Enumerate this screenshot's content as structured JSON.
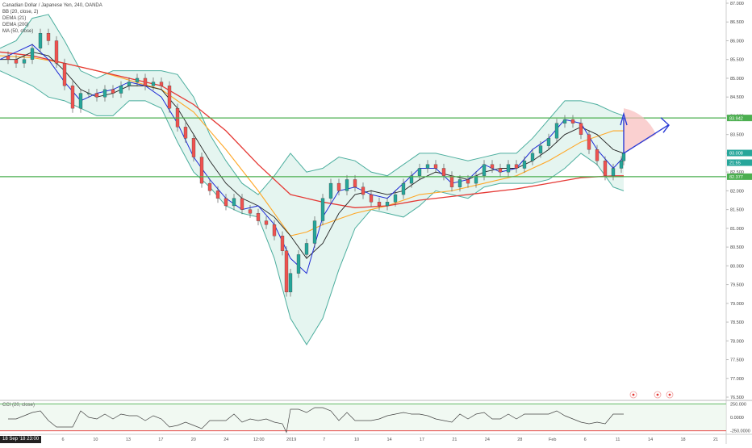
{
  "legend": {
    "symbol": "Canadian Dollar / Japanese Yen, 240, OANDA",
    "bb": "BB (20, close, 2)",
    "dema21": "DEMA (21)",
    "dema200": "DEMA (200)",
    "ma50": "MA (50, close)"
  },
  "oscillator_label": "CCI (20, close)",
  "start_date": "18 Sep '18  23:00",
  "colors": {
    "up": "#26a69a",
    "down": "#ef5350",
    "bb": "#4cae9e",
    "bb_fill": "#dff2ec",
    "dema21": "#1f2bd6",
    "dema200": "#e53935",
    "ma50": "#ffa726",
    "basis": "#222222",
    "hline": "#4caf50",
    "arrow": "#2a3bd6",
    "projection": "#f8bcbc"
  },
  "chart_data": {
    "type": "line",
    "title": "Canadian Dollar / Japanese Yen, 240, OANDA",
    "y_range": [
      76.5,
      87.0
    ],
    "price_ticks": [
      "87.000",
      "86.500",
      "86.000",
      "85.500",
      "85.000",
      "84.500",
      "84.000",
      "83.500",
      "83.000",
      "82.500",
      "82.000",
      "81.500",
      "81.000",
      "80.500",
      "80.000",
      "79.500",
      "79.000",
      "78.500",
      "78.000",
      "77.500",
      "77.000",
      "76.500"
    ],
    "x_ticks": [
      "6",
      "10",
      "13",
      "17",
      "20",
      "24",
      "12:00",
      "2019",
      "7",
      "10",
      "14",
      "17",
      "21",
      "24",
      "28",
      "Feb",
      "6",
      "11",
      "14",
      "18",
      "21"
    ],
    "horizontal_levels": [
      {
        "label": "83.942",
        "value": 83.942
      },
      {
        "label": "82.377",
        "value": 82.377
      }
    ],
    "price_tags": [
      {
        "label": "83.008",
        "value": 83.008
      },
      {
        "label": "21:55",
        "value": 82.75
      }
    ],
    "series": [
      {
        "name": "MA (50, close)",
        "x": [
          0,
          40,
          80,
          120,
          160,
          200,
          240,
          280,
          320,
          360,
          380,
          400,
          440,
          480,
          520,
          560,
          600,
          640,
          680,
          720,
          760,
          773
        ],
        "values": [
          85.6,
          85.55,
          85.4,
          85.2,
          84.95,
          84.7,
          84.1,
          83.1,
          82.0,
          80.8,
          80.9,
          81.1,
          81.4,
          81.6,
          81.9,
          82.0,
          82.2,
          82.4,
          82.8,
          83.3,
          83.6,
          83.6
        ]
      },
      {
        "name": "DEMA (200)",
        "x": [
          0,
          40,
          80,
          120,
          160,
          200,
          240,
          280,
          320,
          360,
          400,
          440,
          480,
          520,
          560,
          600,
          640,
          680,
          720,
          760,
          773
        ],
        "values": [
          85.7,
          85.6,
          85.4,
          85.2,
          85.0,
          84.8,
          84.3,
          83.6,
          82.7,
          81.9,
          81.7,
          81.55,
          81.6,
          81.75,
          81.85,
          81.95,
          82.05,
          82.2,
          82.35,
          82.4,
          82.4
        ]
      },
      {
        "name": "DEMA (21)",
        "x": [
          0,
          20,
          40,
          60,
          80,
          100,
          120,
          140,
          160,
          180,
          200,
          220,
          240,
          260,
          280,
          300,
          320,
          340,
          360,
          380,
          400,
          420,
          440,
          460,
          480,
          500,
          520,
          540,
          560,
          580,
          600,
          620,
          640,
          660,
          680,
          700,
          720,
          740,
          760,
          773
        ],
        "values": [
          85.5,
          85.7,
          85.9,
          85.5,
          84.9,
          84.4,
          84.6,
          84.7,
          84.9,
          84.8,
          84.5,
          83.8,
          82.9,
          82.3,
          81.8,
          81.5,
          81.6,
          81.1,
          80.2,
          79.8,
          81.3,
          82.0,
          82.1,
          81.9,
          81.8,
          82.2,
          82.6,
          82.6,
          82.2,
          82.3,
          82.7,
          82.5,
          82.6,
          83.1,
          83.4,
          83.9,
          83.8,
          83.1,
          82.6,
          82.9
        ]
      },
      {
        "name": "BB basis",
        "x": [
          0,
          20,
          40,
          60,
          80,
          100,
          120,
          140,
          160,
          180,
          200,
          220,
          240,
          260,
          280,
          300,
          320,
          340,
          360,
          380,
          400,
          420,
          440,
          460,
          480,
          500,
          520,
          540,
          560,
          580,
          600,
          620,
          640,
          660,
          680,
          700,
          720,
          740,
          760,
          773
        ],
        "values": [
          85.5,
          85.5,
          85.7,
          85.6,
          85.2,
          84.7,
          84.5,
          84.6,
          84.8,
          84.8,
          84.7,
          84.2,
          83.5,
          82.8,
          82.2,
          81.8,
          81.6,
          81.3,
          80.8,
          80.2,
          80.6,
          81.4,
          81.9,
          82.0,
          81.9,
          82.0,
          82.3,
          82.5,
          82.4,
          82.3,
          82.5,
          82.6,
          82.6,
          82.8,
          83.1,
          83.5,
          83.7,
          83.5,
          83.1,
          83.0
        ]
      },
      {
        "name": "BB upper",
        "x": [
          0,
          20,
          40,
          60,
          80,
          100,
          120,
          140,
          160,
          180,
          200,
          220,
          240,
          260,
          280,
          300,
          320,
          340,
          360,
          380,
          400,
          420,
          440,
          460,
          480,
          500,
          520,
          540,
          560,
          580,
          600,
          620,
          640,
          660,
          680,
          700,
          720,
          740,
          760,
          773
        ],
        "values": [
          85.8,
          86.0,
          86.6,
          86.7,
          86.0,
          85.2,
          85.0,
          85.2,
          85.2,
          85.2,
          85.2,
          85.1,
          84.5,
          83.5,
          82.8,
          82.2,
          81.9,
          82.4,
          83.0,
          82.5,
          82.6,
          82.9,
          82.8,
          82.5,
          82.4,
          82.7,
          83.0,
          83.0,
          82.9,
          82.8,
          82.9,
          83.0,
          83.0,
          83.4,
          83.9,
          84.4,
          84.4,
          84.3,
          84.1,
          84.0
        ]
      },
      {
        "name": "BB lower",
        "x": [
          0,
          20,
          40,
          60,
          80,
          100,
          120,
          140,
          160,
          180,
          200,
          220,
          240,
          260,
          280,
          300,
          320,
          340,
          360,
          380,
          400,
          420,
          440,
          460,
          480,
          500,
          520,
          540,
          560,
          580,
          600,
          620,
          640,
          660,
          680,
          700,
          720,
          740,
          760,
          773
        ],
        "values": [
          85.2,
          85.0,
          84.8,
          84.5,
          84.4,
          84.2,
          84.0,
          84.0,
          84.4,
          84.4,
          84.2,
          83.3,
          82.5,
          82.1,
          81.6,
          81.4,
          81.3,
          80.2,
          78.6,
          77.9,
          78.6,
          79.9,
          81.0,
          81.5,
          81.4,
          81.3,
          81.6,
          82.0,
          81.9,
          81.8,
          82.1,
          82.2,
          82.2,
          82.2,
          82.3,
          82.6,
          83.0,
          82.7,
          82.1,
          82.0
        ]
      },
      {
        "name": "Price",
        "x": [
          0,
          10,
          20,
          30,
          40,
          50,
          60,
          70,
          80,
          90,
          100,
          110,
          120,
          130,
          140,
          150,
          160,
          170,
          180,
          190,
          200,
          210,
          220,
          230,
          240,
          250,
          260,
          270,
          280,
          290,
          300,
          310,
          320,
          330,
          340,
          350,
          355,
          360,
          370,
          380,
          390,
          400,
          410,
          420,
          430,
          440,
          450,
          460,
          470,
          480,
          490,
          500,
          510,
          520,
          530,
          540,
          550,
          560,
          570,
          580,
          590,
          600,
          610,
          620,
          630,
          640,
          650,
          660,
          670,
          680,
          690,
          700,
          710,
          720,
          730,
          740,
          750,
          760,
          770,
          773
        ],
        "values": [
          85.6,
          85.5,
          85.4,
          85.5,
          85.8,
          86.2,
          86.0,
          85.4,
          84.8,
          84.2,
          84.6,
          84.6,
          84.5,
          84.7,
          84.6,
          84.8,
          84.9,
          85.0,
          84.8,
          84.9,
          84.8,
          84.2,
          83.7,
          83.4,
          82.9,
          82.2,
          82.0,
          81.8,
          81.6,
          81.8,
          81.5,
          81.4,
          81.2,
          81.1,
          80.8,
          80.4,
          79.3,
          79.8,
          80.3,
          80.6,
          81.2,
          81.8,
          82.2,
          82.0,
          82.3,
          82.1,
          81.9,
          81.7,
          81.6,
          81.7,
          81.9,
          82.2,
          82.4,
          82.6,
          82.7,
          82.6,
          82.4,
          82.1,
          82.3,
          82.2,
          82.4,
          82.7,
          82.6,
          82.5,
          82.7,
          82.6,
          82.8,
          83.0,
          83.2,
          83.4,
          83.8,
          83.9,
          83.8,
          83.5,
          83.1,
          82.8,
          82.4,
          82.6,
          82.8,
          83.0
        ]
      }
    ],
    "oscillator": {
      "name": "CCI (20, close)",
      "ticks": [
        "250.000",
        "0.0000",
        "-250.0000"
      ],
      "range": [
        -300,
        300
      ]
    }
  }
}
